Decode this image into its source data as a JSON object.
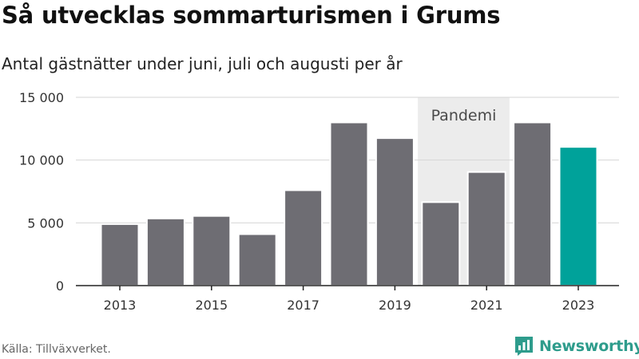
{
  "title": "Så utvecklas sommarturismen i Grums",
  "subtitle": "Antal gästnätter under juni, juli och augusti per år",
  "source": "Källa: Tillväxverket.",
  "brand": "Newsworthy",
  "colors": {
    "bar": "#6e6d73",
    "highlight": "#00a29a",
    "shade": "#ececec",
    "grid": "#d6d6d6",
    "axis": "#222222",
    "brand": "#2e9c8c"
  },
  "chart_data": {
    "type": "bar",
    "x": [
      2013,
      2014,
      2015,
      2016,
      2017,
      2018,
      2019,
      2020,
      2021,
      2022,
      2023
    ],
    "values": [
      4900,
      5350,
      5550,
      4100,
      7600,
      13000,
      11750,
      6650,
      9050,
      13000,
      11050
    ],
    "highlight": [
      2023
    ],
    "ylim": [
      0,
      15000
    ],
    "yticks": [
      0,
      5000,
      10000,
      15000
    ],
    "ytick_labels": [
      "0",
      "5 000",
      "10 000",
      "15 000"
    ],
    "xtick_labels": [
      "2013",
      "2015",
      "2017",
      "2019",
      "2021",
      "2023"
    ],
    "xtick_values": [
      2013,
      2015,
      2017,
      2019,
      2021,
      2023
    ],
    "annotations": [
      {
        "label": "Pandemi",
        "from": 2020,
        "to": 2021
      }
    ],
    "grid": "horizontal",
    "xlabel": "",
    "ylabel": ""
  }
}
